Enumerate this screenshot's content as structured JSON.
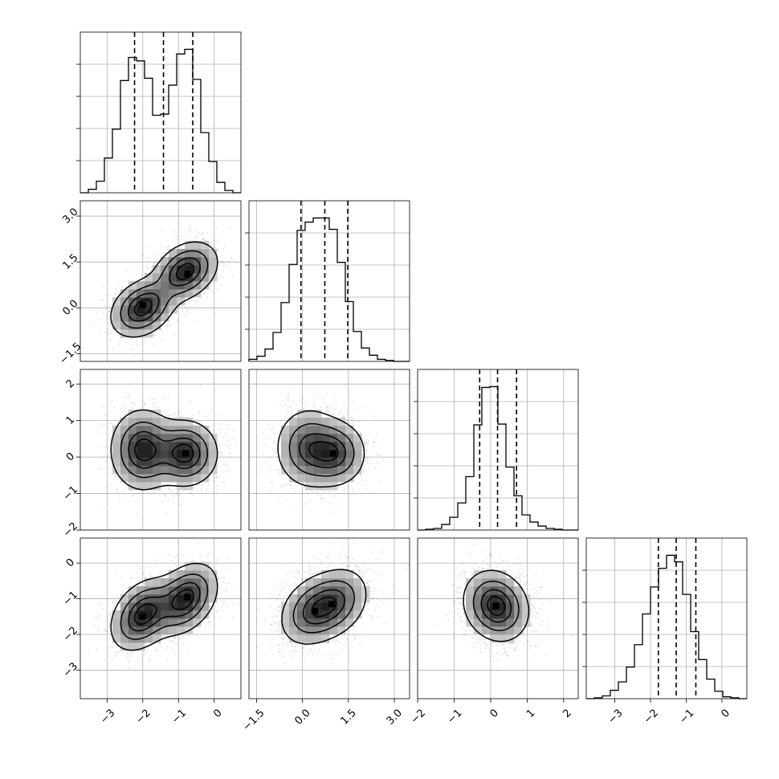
{
  "chart_data": {
    "type": "corner",
    "title": "",
    "n_params": 4,
    "params": [
      {
        "index": 0,
        "range": [
          -3.75,
          0.75
        ],
        "ticks": [
          -3,
          -2,
          -1,
          0
        ],
        "tick_labels": [
          "−3",
          "−2",
          "−1",
          "0"
        ],
        "hist_bin_start": -3.75,
        "hist_bin_width": 0.225,
        "hist_counts": [
          0,
          3,
          10,
          30,
          55,
          97,
          117,
          114,
          99,
          67,
          68,
          93,
          120,
          124,
          98,
          52,
          27,
          9,
          2,
          0
        ],
        "quantiles": [
          -2.23,
          -1.42,
          -0.6
        ]
      },
      {
        "index": 1,
        "range": [
          -1.75,
          3.5
        ],
        "ticks": [
          -1.5,
          0.0,
          1.5,
          3.0
        ],
        "tick_labels": [
          "−1.5",
          "0.0",
          "1.5",
          "3.0"
        ],
        "hist_bin_start": -1.75,
        "hist_bin_width": 0.2625,
        "hist_counts": [
          2,
          5,
          12,
          28,
          57,
          94,
          127,
          135,
          139,
          139,
          128,
          96,
          58,
          29,
          13,
          6,
          2,
          1,
          0,
          0
        ],
        "quantiles": [
          -0.05,
          0.73,
          1.48
        ]
      },
      {
        "index": 2,
        "range": [
          -2.0,
          2.4
        ],
        "ticks": [
          -2,
          -1,
          0,
          1,
          2
        ],
        "tick_labels": [
          "−2",
          "−1",
          "0",
          "1",
          "2"
        ],
        "hist_bin_start": -2.0,
        "hist_bin_width": 0.22,
        "hist_counts": [
          0,
          1,
          2,
          7,
          16,
          34,
          67,
          132,
          179,
          180,
          133,
          79,
          43,
          19,
          10,
          5,
          2,
          1,
          0,
          0
        ],
        "quantiles": [
          -0.3,
          0.19,
          0.71
        ]
      },
      {
        "index": 3,
        "range": [
          -3.8,
          0.7
        ],
        "ticks": [
          -3,
          -2,
          -1,
          0
        ],
        "tick_labels": [
          "−3",
          "−2",
          "−1",
          "0"
        ],
        "hist_bin_start": -3.8,
        "hist_bin_width": 0.225,
        "hist_counts": [
          0,
          1,
          3,
          9,
          18,
          34,
          58,
          91,
          120,
          140,
          154,
          147,
          112,
          72,
          42,
          21,
          8,
          2,
          1,
          0
        ],
        "quantiles": [
          -1.78,
          -1.28,
          -0.73
        ]
      }
    ],
    "pairs": [
      {
        "x_param": 0,
        "y_param": 1,
        "y_ticks_shown": true,
        "x_ticks_shown": false,
        "components": [
          {
            "mean": [
              -2.0,
              0.0
            ],
            "sd": [
              0.45,
              0.48
            ],
            "rho": 0.3
          },
          {
            "mean": [
              -0.8,
              1.2
            ],
            "sd": [
              0.45,
              0.48
            ],
            "rho": 0.3
          }
        ],
        "density_peaks": [
          [
            -2.0,
            0.1
          ],
          [
            -0.75,
            1.1
          ]
        ]
      },
      {
        "x_param": 0,
        "y_param": 2,
        "y_ticks_shown": true,
        "x_ticks_shown": false,
        "components": [
          {
            "mean": [
              -2.0,
              0.2
            ],
            "sd": [
              0.45,
              0.55
            ],
            "rho": 0.0
          },
          {
            "mean": [
              -0.8,
              0.1
            ],
            "sd": [
              0.45,
              0.45
            ],
            "rho": 0.0
          }
        ],
        "density_peaks": [
          [
            -0.8,
            0.1
          ]
        ]
      },
      {
        "x_param": 1,
        "y_param": 2,
        "y_ticks_shown": false,
        "x_ticks_shown": false,
        "components": [
          {
            "mean": [
              0.2,
              0.25
            ],
            "sd": [
              0.55,
              0.55
            ],
            "rho": 0.0
          },
          {
            "mean": [
              1.1,
              0.1
            ],
            "sd": [
              0.5,
              0.45
            ],
            "rho": 0.0
          }
        ],
        "density_peaks": [
          [
            1.0,
            0.1
          ]
        ]
      },
      {
        "x_param": 0,
        "y_param": 3,
        "y_ticks_shown": true,
        "x_ticks_shown": true,
        "components": [
          {
            "mean": [
              -2.0,
              -1.45
            ],
            "sd": [
              0.45,
              0.5
            ],
            "rho": 0.35
          },
          {
            "mean": [
              -0.8,
              -1.0
            ],
            "sd": [
              0.45,
              0.5
            ],
            "rho": 0.35
          }
        ],
        "density_peaks": [
          [
            -2.0,
            -1.5
          ],
          [
            -0.75,
            -0.95
          ]
        ]
      },
      {
        "x_param": 1,
        "y_param": 3,
        "y_ticks_shown": false,
        "x_ticks_shown": true,
        "components": [
          {
            "mean": [
              0.3,
              -1.35
            ],
            "sd": [
              0.55,
              0.5
            ],
            "rho": 0.25
          },
          {
            "mean": [
              1.1,
              -1.1
            ],
            "sd": [
              0.55,
              0.5
            ],
            "rho": 0.25
          }
        ],
        "density_peaks": [
          [
            0.4,
            -1.35
          ],
          [
            0.95,
            -1.15
          ]
        ]
      },
      {
        "x_param": 2,
        "y_param": 3,
        "y_ticks_shown": false,
        "x_ticks_shown": true,
        "components": [
          {
            "mean": [
              0.15,
              -1.2
            ],
            "sd": [
              0.45,
              0.5
            ],
            "rho": -0.15
          }
        ],
        "density_peaks": [
          [
            0.15,
            -1.2
          ]
        ]
      }
    ],
    "grid": true,
    "quantile_line_style": "dashed",
    "contour_levels": 4,
    "colors": {
      "hist": "#000000",
      "contour": "#000000",
      "scatter": "#000000",
      "grid": "#b0b0b0"
    }
  }
}
